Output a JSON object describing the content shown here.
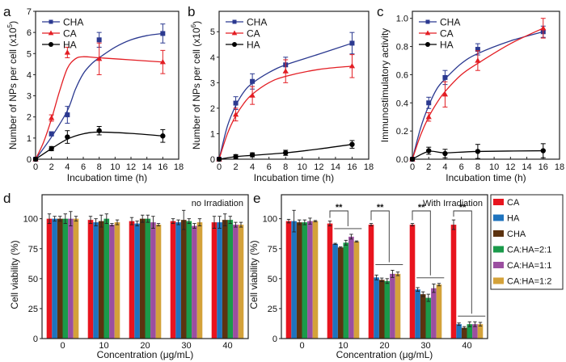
{
  "figure": {
    "panel_labels": [
      "a",
      "b",
      "c",
      "d",
      "e"
    ]
  },
  "chart_data": [
    {
      "id": "a",
      "type": "line",
      "panel_label": "a",
      "title": "",
      "xlabel": "Incubation time (h)",
      "ylabel": "Number of NPs per cell (x10",
      "ylabel_sup": "5",
      "ylabel_tail": ")",
      "xlim": [
        0,
        18
      ],
      "ylim": [
        0,
        7
      ],
      "xticks": [
        0,
        2,
        4,
        6,
        8,
        10,
        12,
        14,
        16,
        18
      ],
      "yticks": [
        0,
        1,
        2,
        3,
        4,
        5,
        6,
        7
      ],
      "ytick_labels": [
        "0",
        "1",
        "2",
        "3",
        "4",
        "5",
        "6",
        "7"
      ],
      "legend": "top-left",
      "x": [
        0,
        2,
        4,
        8,
        16
      ],
      "series": [
        {
          "name": "CHA",
          "color": "#2b3990",
          "marker": "square",
          "values": [
            0.0,
            1.2,
            2.1,
            5.65,
            5.95
          ],
          "errors": [
            0.05,
            0.1,
            0.4,
            0.35,
            0.45
          ],
          "fit": [
            [
              0,
              0
            ],
            [
              2,
              1.05
            ],
            [
              4,
              2.3
            ],
            [
              5,
              3.3
            ],
            [
              6,
              4.05
            ],
            [
              7,
              4.5
            ],
            [
              8,
              4.8
            ],
            [
              10,
              5.3
            ],
            [
              12,
              5.65
            ],
            [
              14,
              5.85
            ],
            [
              16,
              5.95
            ]
          ]
        },
        {
          "name": "CA",
          "color": "#e31e24",
          "marker": "triangle",
          "values": [
            0.0,
            1.95,
            5.05,
            4.75,
            4.6
          ],
          "errors": [
            0.05,
            0.15,
            0.25,
            0.75,
            0.55
          ],
          "fit": [
            [
              0,
              0
            ],
            [
              1,
              0.8
            ],
            [
              2,
              1.9
            ],
            [
              3,
              3.2
            ],
            [
              4,
              4.3
            ],
            [
              5,
              4.75
            ],
            [
              6,
              4.85
            ],
            [
              8,
              4.8
            ],
            [
              12,
              4.7
            ],
            [
              16,
              4.6
            ]
          ]
        },
        {
          "name": "HA",
          "color": "#000000",
          "marker": "circle",
          "values": [
            0.0,
            0.5,
            1.05,
            1.35,
            1.1
          ],
          "errors": [
            0.05,
            0.1,
            0.3,
            0.2,
            0.3
          ],
          "fit": [
            [
              0,
              0
            ],
            [
              2,
              0.5
            ],
            [
              4,
              0.95
            ],
            [
              6,
              1.2
            ],
            [
              8,
              1.28
            ],
            [
              12,
              1.22
            ],
            [
              16,
              1.1
            ]
          ]
        }
      ]
    },
    {
      "id": "b",
      "type": "line",
      "panel_label": "b",
      "title": "",
      "xlabel": "Incubation time (h)",
      "ylabel": "Number of NPs per cell (x10",
      "ylabel_sup": "6",
      "ylabel_tail": ")",
      "xlim": [
        0,
        18
      ],
      "ylim": [
        0,
        5.8
      ],
      "xticks": [
        0,
        2,
        4,
        6,
        8,
        10,
        12,
        14,
        16,
        18
      ],
      "yticks": [
        0,
        1,
        2,
        3,
        4,
        5
      ],
      "ytick_labels": [
        "0",
        "1",
        "2",
        "3",
        "4",
        "5"
      ],
      "legend": "top-left",
      "x": [
        0,
        2,
        4,
        8,
        16
      ],
      "series": [
        {
          "name": "CHA",
          "color": "#2b3990",
          "marker": "square",
          "values": [
            0.0,
            2.2,
            3.05,
            3.7,
            4.55
          ],
          "errors": [
            0.05,
            0.25,
            0.3,
            0.3,
            0.42
          ],
          "fit": [
            [
              0,
              0
            ],
            [
              1,
              1.3
            ],
            [
              2,
              2.1
            ],
            [
              3,
              2.65
            ],
            [
              4,
              2.98
            ],
            [
              6,
              3.4
            ],
            [
              8,
              3.7
            ],
            [
              12,
              4.12
            ],
            [
              16,
              4.55
            ]
          ]
        },
        {
          "name": "CA",
          "color": "#e31e24",
          "marker": "triangle",
          "values": [
            0.0,
            1.75,
            2.5,
            3.45,
            3.65
          ],
          "errors": [
            0.05,
            0.25,
            0.35,
            0.45,
            0.45
          ],
          "fit": [
            [
              0,
              0
            ],
            [
              1,
              1.0
            ],
            [
              2,
              1.7
            ],
            [
              3,
              2.2
            ],
            [
              4,
              2.55
            ],
            [
              6,
              3.0
            ],
            [
              8,
              3.25
            ],
            [
              12,
              3.52
            ],
            [
              16,
              3.65
            ]
          ]
        },
        {
          "name": "HA",
          "color": "#000000",
          "marker": "circle",
          "values": [
            0.0,
            0.1,
            0.17,
            0.25,
            0.58
          ],
          "errors": [
            0.03,
            0.08,
            0.08,
            0.1,
            0.15
          ],
          "fit": [
            [
              0,
              0
            ],
            [
              2,
              0.1
            ],
            [
              4,
              0.15
            ],
            [
              8,
              0.25
            ],
            [
              12,
              0.4
            ],
            [
              16,
              0.58
            ]
          ]
        }
      ]
    },
    {
      "id": "c",
      "type": "line",
      "panel_label": "c",
      "title": "",
      "xlabel": "Incubation time (h)",
      "ylabel": "Immunostimulatory activity",
      "ylabel_sup": "",
      "ylabel_tail": "",
      "xlim": [
        0,
        18
      ],
      "ylim": [
        0,
        1.05
      ],
      "xticks": [
        0,
        2,
        4,
        6,
        8,
        10,
        12,
        14,
        16,
        18
      ],
      "yticks": [
        0,
        0.2,
        0.4,
        0.6,
        0.8,
        1.0
      ],
      "ytick_labels": [
        "0.0",
        "0.2",
        "0.4",
        "0.6",
        "0.8",
        "1.0"
      ],
      "legend": "top-left",
      "x": [
        0,
        2,
        4,
        8,
        16
      ],
      "series": [
        {
          "name": "CHA",
          "color": "#2b3990",
          "marker": "square",
          "values": [
            0.0,
            0.4,
            0.58,
            0.78,
            0.905
          ],
          "errors": [
            0.01,
            0.04,
            0.05,
            0.04,
            0.04
          ],
          "fit": [
            [
              0,
              0
            ],
            [
              1,
              0.22
            ],
            [
              2,
              0.38
            ],
            [
              3,
              0.5
            ],
            [
              4,
              0.57
            ],
            [
              6,
              0.68
            ],
            [
              8,
              0.75
            ],
            [
              12,
              0.84
            ],
            [
              16,
              0.905
            ]
          ]
        },
        {
          "name": "CA",
          "color": "#e31e24",
          "marker": "triangle",
          "values": [
            0.0,
            0.3,
            0.46,
            0.7,
            0.93
          ],
          "errors": [
            0.01,
            0.03,
            0.09,
            0.07,
            0.07
          ],
          "fit": [
            [
              0,
              0
            ],
            [
              1,
              0.17
            ],
            [
              2,
              0.3
            ],
            [
              3,
              0.4
            ],
            [
              4,
              0.48
            ],
            [
              6,
              0.6
            ],
            [
              8,
              0.68
            ],
            [
              12,
              0.82
            ],
            [
              16,
              0.93
            ]
          ]
        },
        {
          "name": "HA",
          "color": "#000000",
          "marker": "circle",
          "values": [
            0.0,
            0.06,
            0.04,
            0.055,
            0.06
          ],
          "errors": [
            0.005,
            0.025,
            0.03,
            0.05,
            0.05
          ],
          "fit": [
            [
              0,
              0
            ],
            [
              2,
              0.055
            ],
            [
              4,
              0.045
            ],
            [
              8,
              0.055
            ],
            [
              16,
              0.06
            ]
          ]
        }
      ]
    },
    {
      "id": "d",
      "type": "bar",
      "panel_label": "d",
      "title": "",
      "annotation": "no Irradiation",
      "xlabel": "Concentration (μg/mL)",
      "ylabel": "Cell viability (%)",
      "ylim": [
        0,
        120
      ],
      "yticks": [
        0,
        25,
        50,
        75,
        100
      ],
      "categories": [
        "0",
        "10",
        "20",
        "30",
        "40"
      ],
      "series": [
        {
          "name": "CA",
          "color": "#e8141e",
          "values": [
            100,
            99,
            98,
            98,
            97
          ],
          "errors": [
            4,
            3,
            3,
            2,
            5
          ]
        },
        {
          "name": "HA",
          "color": "#1e73be",
          "values": [
            100,
            97,
            96,
            97,
            97
          ],
          "errors": [
            2,
            3,
            2,
            2,
            5
          ]
        },
        {
          "name": "CHA",
          "color": "#5c3310",
          "values": [
            100,
            98,
            100,
            99,
            99
          ],
          "errors": [
            2,
            5,
            3,
            8,
            5
          ]
        },
        {
          "name": "CA:HA=2:1",
          "color": "#1a9a4a",
          "values": [
            100,
            100,
            100,
            98,
            99
          ],
          "errors": [
            4,
            4,
            3,
            2,
            3
          ]
        },
        {
          "name": "CA:HA=1:1",
          "color": "#9b4fa0",
          "values": [
            100,
            95,
            97,
            94,
            95
          ],
          "errors": [
            6,
            1,
            5,
            2,
            2
          ]
        },
        {
          "name": "CA:HA=1:2",
          "color": "#d4a23a",
          "values": [
            100,
            97,
            95,
            97,
            95
          ],
          "errors": [
            2,
            2,
            1,
            3,
            2
          ]
        }
      ]
    },
    {
      "id": "e",
      "type": "bar",
      "panel_label": "e",
      "title": "",
      "annotation": "With Irradiation",
      "xlabel": "Concentration (μg/mL)",
      "ylabel": "Cell viability (%)",
      "ylim": [
        0,
        120
      ],
      "yticks": [
        0,
        25,
        50,
        75,
        100
      ],
      "categories": [
        "0",
        "10",
        "20",
        "30",
        "40"
      ],
      "significance": [
        {
          "category": "10",
          "label": "**"
        },
        {
          "category": "20",
          "label": "**"
        },
        {
          "category": "30",
          "label": "**"
        },
        {
          "category": "40",
          "label": "**"
        }
      ],
      "legend": "outside-right",
      "series": [
        {
          "name": "CA",
          "color": "#e8141e",
          "values": [
            98,
            96,
            95,
            95,
            95
          ],
          "errors": [
            1.5,
            2,
            1,
            1,
            4
          ]
        },
        {
          "name": "HA",
          "color": "#1e73be",
          "values": [
            98,
            79,
            51,
            41,
            12
          ],
          "errors": [
            9,
            0.5,
            2,
            1.5,
            1
          ]
        },
        {
          "name": "CHA",
          "color": "#5c3310",
          "values": [
            97,
            76,
            49,
            37,
            9
          ],
          "errors": [
            2,
            0.5,
            1.5,
            2,
            1
          ]
        },
        {
          "name": "CA:HA=2:1",
          "color": "#1a9a4a",
          "values": [
            97,
            80,
            48,
            34,
            12
          ],
          "errors": [
            2,
            2,
            2,
            3,
            2
          ]
        },
        {
          "name": "CA:HA=1:1",
          "color": "#9b4fa0",
          "values": [
            98,
            85,
            54,
            42,
            12
          ],
          "errors": [
            2.5,
            2,
            3,
            3.5,
            2
          ]
        },
        {
          "name": "CA:HA=1:2",
          "color": "#d4a23a",
          "values": [
            98,
            81,
            54,
            45,
            12
          ],
          "errors": [
            0.5,
            0.5,
            1.5,
            1,
            1.5
          ]
        }
      ]
    }
  ],
  "legend_e": {
    "items": [
      {
        "label": "CA",
        "color": "#e8141e"
      },
      {
        "label": "HA",
        "color": "#1e73be"
      },
      {
        "label": "CHA",
        "color": "#5c3310"
      },
      {
        "label": "CA:HA=2:1",
        "color": "#1a9a4a"
      },
      {
        "label": "CA:HA=1:1",
        "color": "#9b4fa0"
      },
      {
        "label": "CA:HA=1:2",
        "color": "#d4a23a"
      }
    ]
  }
}
